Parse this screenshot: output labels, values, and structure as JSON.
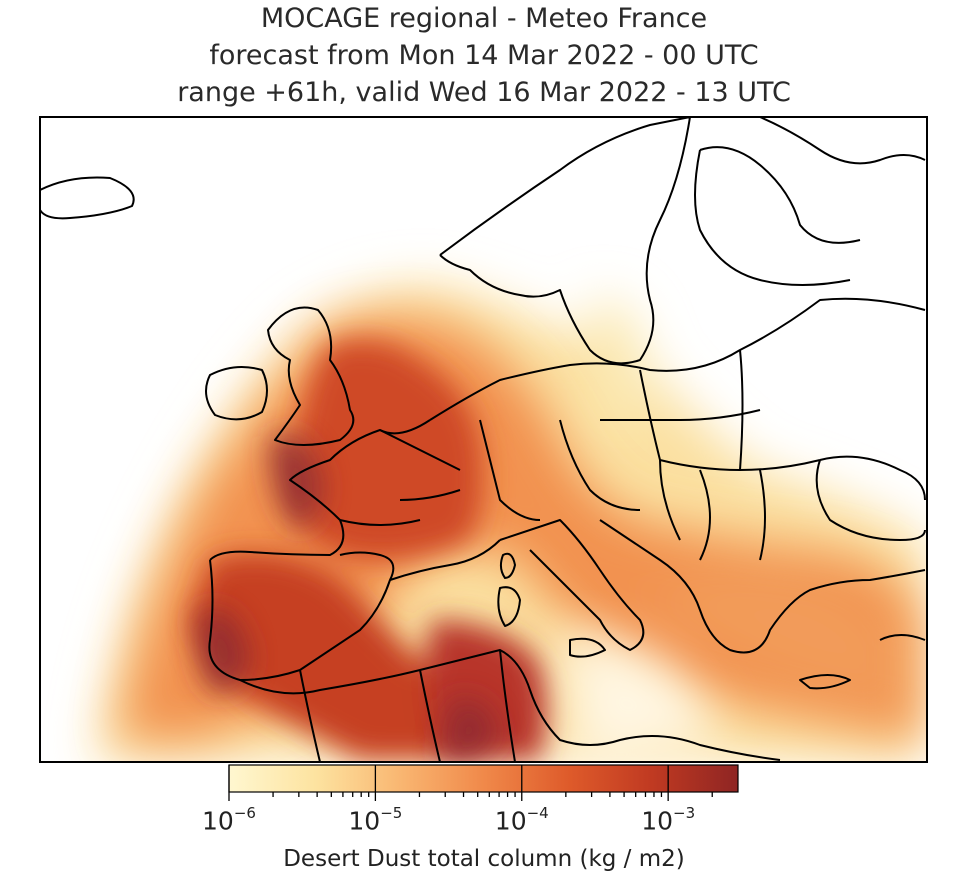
{
  "titles": [
    "MOCAGE regional - Meteo France",
    "forecast from Mon 14 Mar 2022 - 00 UTC",
    "range +61h, valid Wed 16 Mar 2022 - 13 UTC"
  ],
  "colorbar": {
    "label": "Desert Dust total column (kg / m2)",
    "ticks": [
      {
        "base": "10",
        "exp": "−6"
      },
      {
        "base": "10",
        "exp": "−5"
      },
      {
        "base": "10",
        "exp": "−4"
      },
      {
        "base": "10",
        "exp": "−3"
      }
    ],
    "scale": "log",
    "range": [
      "1e-6",
      "3e-3"
    ],
    "colors": [
      "#fff7d0",
      "#fde3a0",
      "#f9b873",
      "#f0894a",
      "#de5a2a",
      "#c03a22",
      "#8f2523"
    ]
  }
}
